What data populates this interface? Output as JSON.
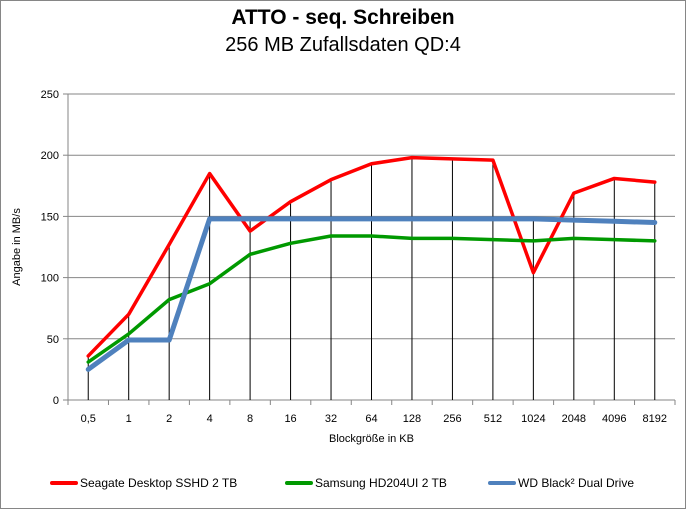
{
  "chart_data": {
    "type": "line",
    "title": "ATTO - seq. Schreiben",
    "subtitle": "256 MB Zufallsdaten QD:4",
    "xlabel": "Blockgröße in KB",
    "ylabel": "Angabe in MB/s",
    "ylim": [
      0,
      250
    ],
    "yticks": [
      "0",
      "50",
      "100",
      "150",
      "200",
      "250"
    ],
    "grid": "horizontal",
    "legend": "bottom",
    "categories": [
      "0,5",
      "1",
      "2",
      "4",
      "8",
      "16",
      "32",
      "64",
      "128",
      "256",
      "512",
      "1024",
      "2048",
      "4096",
      "8192"
    ],
    "series": [
      {
        "name": "Seagate Desktop SSHD 2 TB",
        "color": "#ff0000",
        "values": [
          36,
          70,
          127,
          185,
          138,
          162,
          180,
          193,
          198,
          197,
          196,
          104,
          169,
          181,
          178
        ]
      },
      {
        "name": "Samsung HD204UI 2 TB",
        "color": "#009900",
        "values": [
          31,
          54,
          82,
          95,
          119,
          128,
          134,
          134,
          132,
          132,
          131,
          130,
          132,
          131,
          130
        ]
      },
      {
        "name": "WD Black² Dual Drive",
        "color": "#4f81bd",
        "values": [
          25,
          49,
          49,
          148,
          148,
          148,
          148,
          148,
          148,
          148,
          148,
          148,
          147,
          146,
          145
        ]
      }
    ]
  }
}
